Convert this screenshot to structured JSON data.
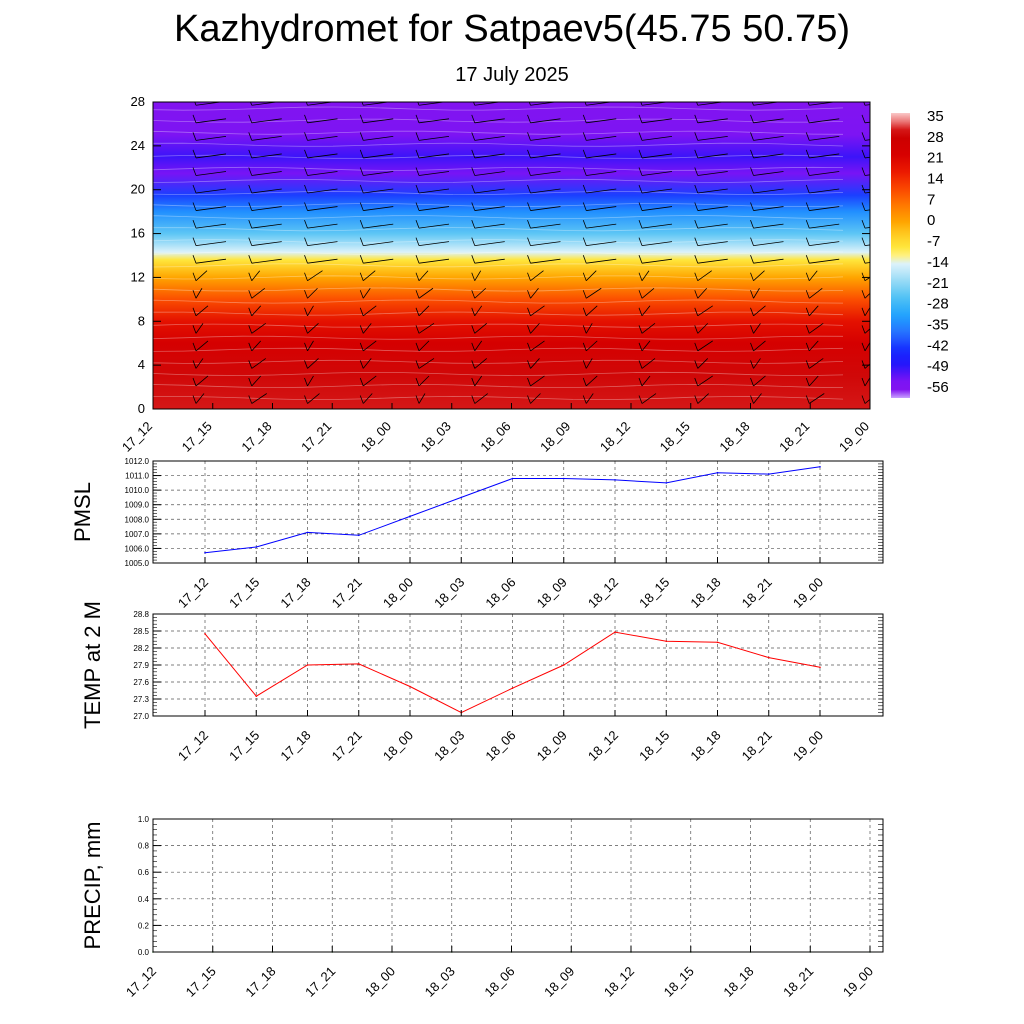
{
  "title": "Kazhydromet for Satpaev5(45.75 50.75)",
  "subtitle": "17 July 2025",
  "chart_data": [
    {
      "type": "heatmap",
      "name": "cross-section",
      "x_categories": [
        "17_12",
        "17_15",
        "17_18",
        "17_21",
        "18_00",
        "18_03",
        "18_06",
        "18_09",
        "18_12",
        "18_15",
        "18_18",
        "18_21",
        "19_00"
      ],
      "y_ticks": [
        "0",
        "4",
        "8",
        "12",
        "16",
        "20",
        "24",
        "28"
      ],
      "ylim": [
        0,
        28
      ],
      "z_profile": [
        {
          "y": 0,
          "value": 33
        },
        {
          "y": 3,
          "value": 31
        },
        {
          "y": 6,
          "value": 25
        },
        {
          "y": 8,
          "value": 20
        },
        {
          "y": 10,
          "value": 11
        },
        {
          "y": 12,
          "value": 0
        },
        {
          "y": 13.6,
          "value": -9
        },
        {
          "y": 14.3,
          "value": -15
        },
        {
          "y": 16,
          "value": -26
        },
        {
          "y": 18,
          "value": -36
        },
        {
          "y": 19.5,
          "value": -44
        },
        {
          "y": 21.5,
          "value": -56
        },
        {
          "y": 23,
          "value": -53
        },
        {
          "y": 25,
          "value": -58
        },
        {
          "y": 28,
          "value": -60
        }
      ],
      "colorbar_labels": [
        "35",
        "28",
        "21",
        "14",
        "7",
        "0",
        "-7",
        "-14",
        "-21",
        "-28",
        "-35",
        "-42",
        "-49",
        "-56"
      ],
      "colorbar_range": [
        -63,
        39
      ]
    },
    {
      "type": "line",
      "ylabel": "PMSL",
      "color": "#0000ff",
      "categories": [
        "17_12",
        "17_15",
        "17_18",
        "17_21",
        "18_00",
        "18_03",
        "18_06",
        "18_09",
        "18_12",
        "18_15",
        "18_18",
        "18_21",
        "19_00"
      ],
      "values": [
        1005.7,
        1006.1,
        1007.1,
        1006.9,
        1008.2,
        1009.5,
        1010.8,
        1010.8,
        1010.7,
        1010.5,
        1011.2,
        1011.1,
        1011.6
      ],
      "ylim": [
        1005.0,
        1012.0
      ],
      "y_ticks": [
        "1005.0",
        "1006.0",
        "1007.0",
        "1008.0",
        "1009.0",
        "1010.0",
        "1011.0",
        "1012.0"
      ],
      "grid": true
    },
    {
      "type": "line",
      "ylabel": "TEMP at 2 M",
      "color": "#ff0000",
      "categories": [
        "17_12",
        "17_15",
        "17_18",
        "17_21",
        "18_00",
        "18_03",
        "18_06",
        "18_09",
        "18_12",
        "18_15",
        "18_18",
        "18_21",
        "19_00"
      ],
      "values": [
        28.45,
        27.35,
        27.9,
        27.92,
        27.52,
        27.06,
        27.49,
        27.9,
        28.48,
        28.32,
        28.3,
        28.03,
        27.86
      ],
      "ylim": [
        27.0,
        28.8
      ],
      "y_ticks": [
        "27.0",
        "27.3",
        "27.6",
        "27.9",
        "28.2",
        "28.5",
        "28.8"
      ],
      "grid": true
    },
    {
      "type": "line",
      "ylabel": "PRECIP, mm",
      "color": "#006400",
      "categories": [
        "17_12",
        "17_15",
        "17_18",
        "17_21",
        "18_00",
        "18_03",
        "18_06",
        "18_09",
        "18_12",
        "18_15",
        "18_18",
        "18_21",
        "19_00"
      ],
      "values": [
        0,
        0,
        0,
        0,
        0,
        0,
        0,
        0,
        0,
        0,
        0,
        0,
        0
      ],
      "ylim": [
        0.0,
        1.0
      ],
      "y_ticks": [
        "0.0",
        "0.2",
        "0.4",
        "0.6",
        "0.8",
        "1.0"
      ],
      "grid": true
    }
  ]
}
